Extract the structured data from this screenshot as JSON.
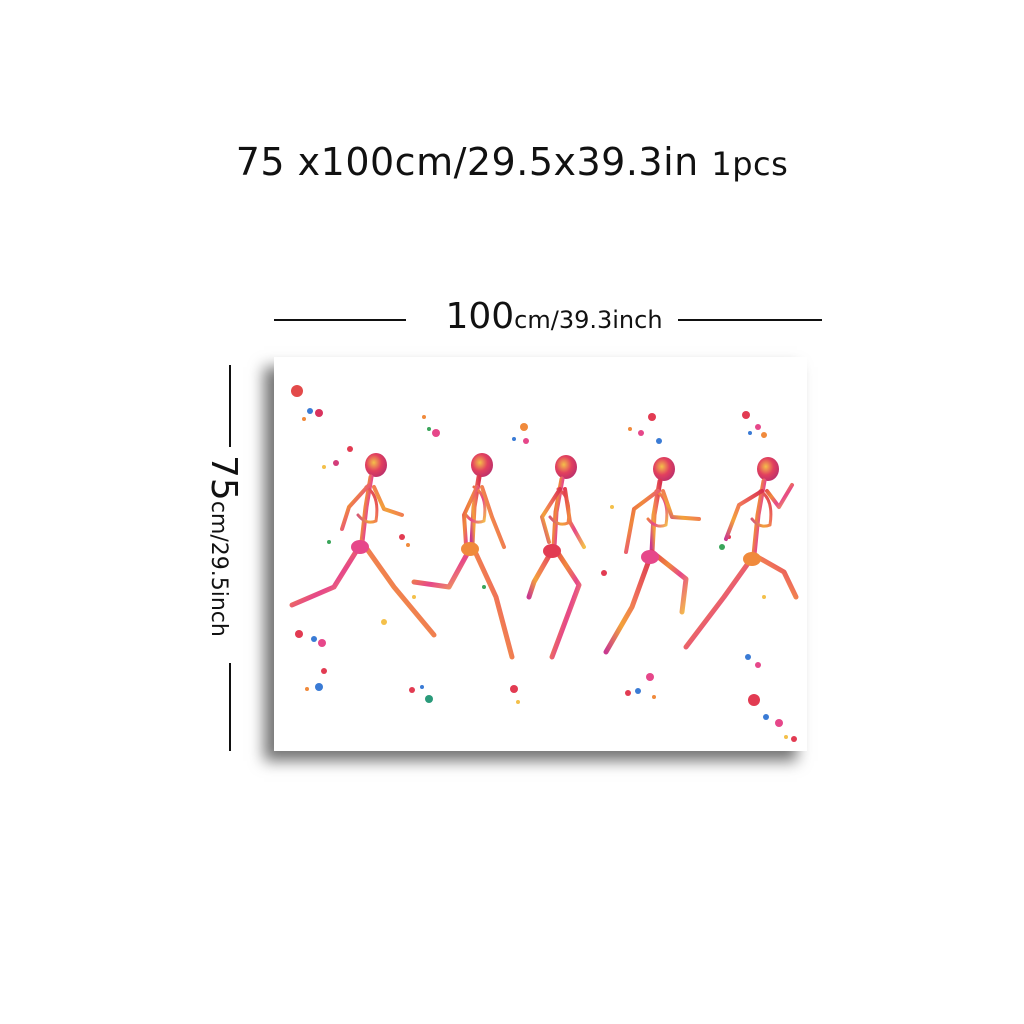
{
  "title": {
    "size": "75 x100cm/29.5x39.3in",
    "count": "1pcs"
  },
  "width_dimension": {
    "value": "100",
    "unit": "cm/39.3inch"
  },
  "height_dimension": {
    "value": "75",
    "unit": "cm/29.5inch"
  },
  "artwork": {
    "subject": "running-skeletons",
    "figure_count": 5
  }
}
